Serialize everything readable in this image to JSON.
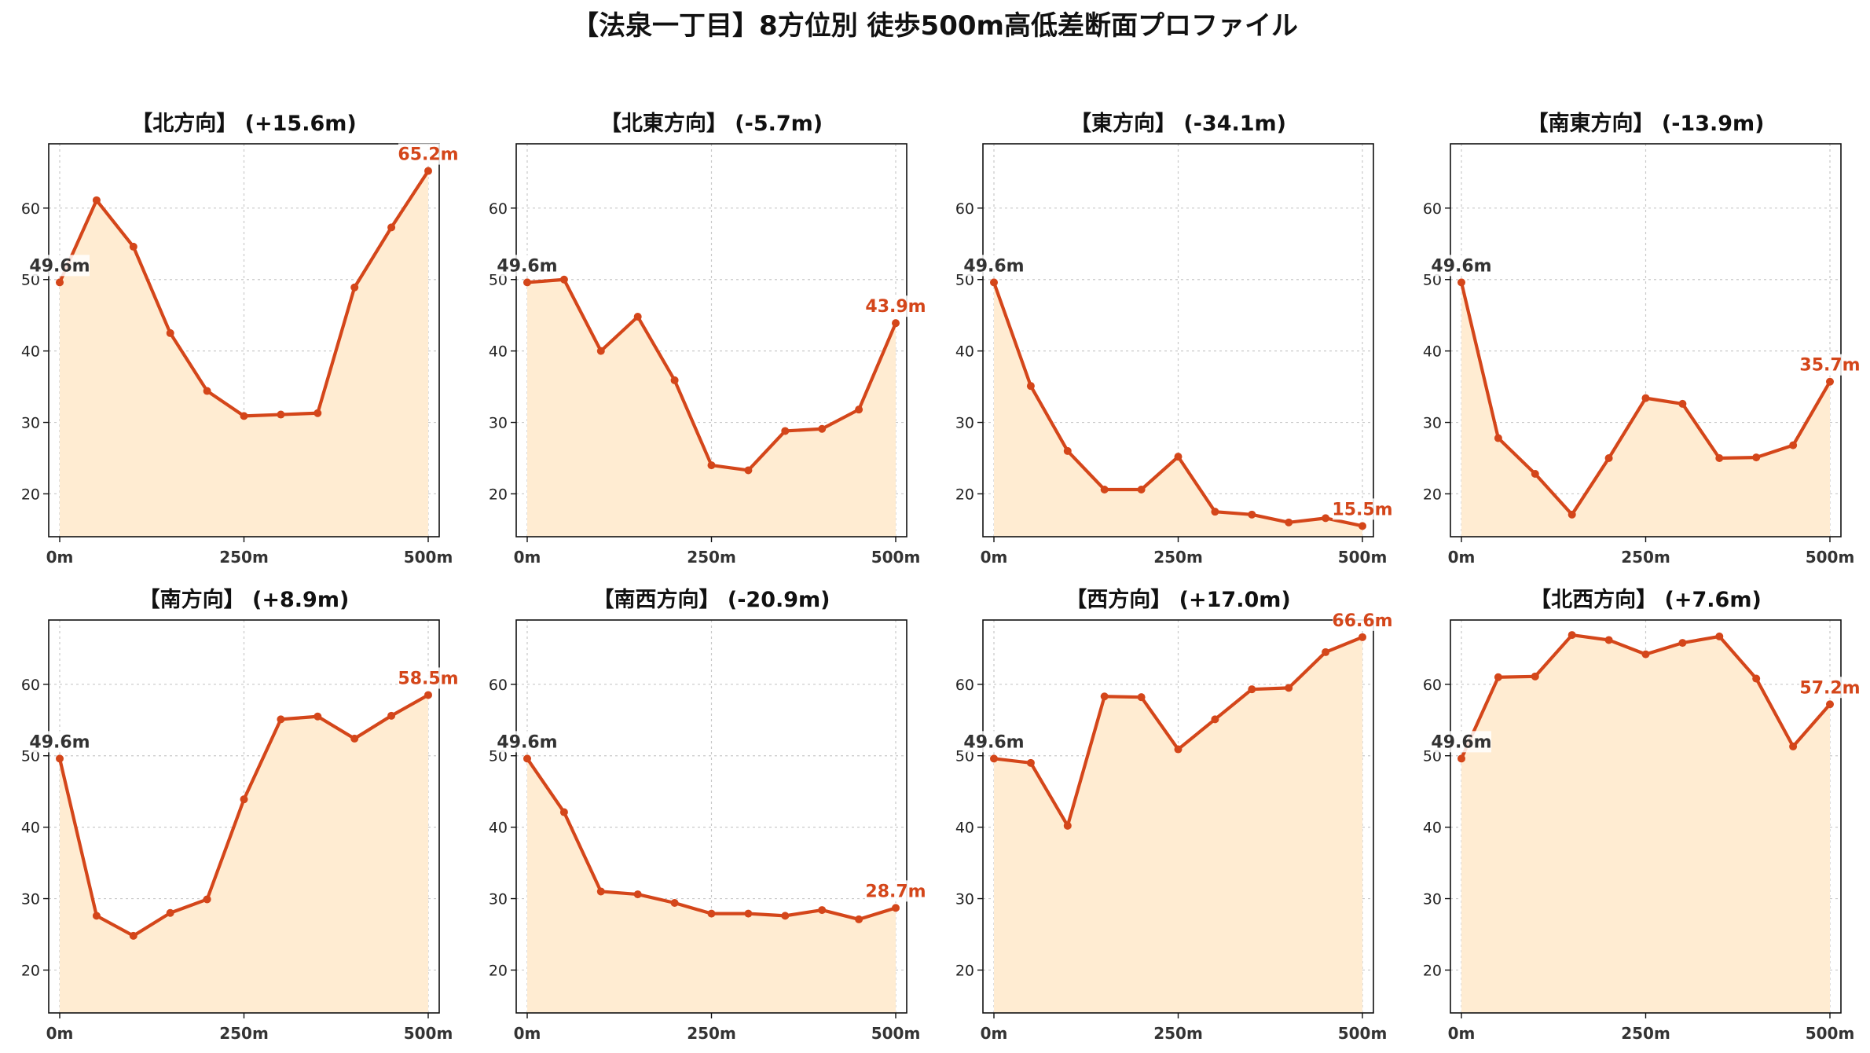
{
  "suptitle": "【法泉一丁目】8方位別 徒歩500m高低差断面プロファイル",
  "colors": {
    "line": "#d4461a",
    "fill": "#ffecd2",
    "start_label": "#333333",
    "end_label": "#d4461a"
  },
  "chart_data": [
    {
      "type": "area",
      "title": "【北方向】 (+15.6m)",
      "x": [
        0,
        50,
        100,
        150,
        200,
        250,
        300,
        350,
        400,
        450,
        500
      ],
      "y": [
        49.6,
        61.1,
        54.6,
        42.5,
        34.4,
        30.9,
        31.1,
        31.3,
        48.9,
        57.3,
        65.2
      ],
      "start_label": "49.6m",
      "end_label": "65.2m",
      "xticks": [
        "0m",
        "250m",
        "500m"
      ],
      "yticks": [
        20,
        30,
        40,
        50,
        60
      ],
      "ylim": [
        14,
        69
      ],
      "grid": true
    },
    {
      "type": "area",
      "title": "【北東方向】 (-5.7m)",
      "x": [
        0,
        50,
        100,
        150,
        200,
        250,
        300,
        350,
        400,
        450,
        500
      ],
      "y": [
        49.6,
        50.0,
        40.0,
        44.8,
        35.9,
        24.0,
        23.3,
        28.8,
        29.1,
        31.8,
        43.9
      ],
      "start_label": "49.6m",
      "end_label": "43.9m",
      "xticks": [
        "0m",
        "250m",
        "500m"
      ],
      "yticks": [
        20,
        30,
        40,
        50,
        60
      ],
      "ylim": [
        14,
        69
      ],
      "grid": true
    },
    {
      "type": "area",
      "title": "【東方向】 (-34.1m)",
      "x": [
        0,
        50,
        100,
        150,
        200,
        250,
        300,
        350,
        400,
        450,
        500
      ],
      "y": [
        49.6,
        35.1,
        26.0,
        20.6,
        20.6,
        25.2,
        17.5,
        17.1,
        16.0,
        16.6,
        15.5
      ],
      "start_label": "49.6m",
      "end_label": "15.5m",
      "xticks": [
        "0m",
        "250m",
        "500m"
      ],
      "yticks": [
        20,
        30,
        40,
        50,
        60
      ],
      "ylim": [
        14,
        69
      ],
      "grid": true
    },
    {
      "type": "area",
      "title": "【南東方向】 (-13.9m)",
      "x": [
        0,
        50,
        100,
        150,
        200,
        250,
        300,
        350,
        400,
        450,
        500
      ],
      "y": [
        49.6,
        27.8,
        22.8,
        17.1,
        25.0,
        33.4,
        32.6,
        25.0,
        25.1,
        26.8,
        35.7
      ],
      "start_label": "49.6m",
      "end_label": "35.7m",
      "xticks": [
        "0m",
        "250m",
        "500m"
      ],
      "yticks": [
        20,
        30,
        40,
        50,
        60
      ],
      "ylim": [
        14,
        69
      ],
      "grid": true
    },
    {
      "type": "area",
      "title": "【南方向】 (+8.9m)",
      "x": [
        0,
        50,
        100,
        150,
        200,
        250,
        300,
        350,
        400,
        450,
        500
      ],
      "y": [
        49.6,
        27.6,
        24.8,
        28.0,
        29.9,
        43.9,
        55.1,
        55.5,
        52.4,
        55.6,
        58.5
      ],
      "start_label": "49.6m",
      "end_label": "58.5m",
      "xticks": [
        "0m",
        "250m",
        "500m"
      ],
      "yticks": [
        20,
        30,
        40,
        50,
        60
      ],
      "ylim": [
        14,
        69
      ],
      "grid": true
    },
    {
      "type": "area",
      "title": "【南西方向】 (-20.9m)",
      "x": [
        0,
        50,
        100,
        150,
        200,
        250,
        300,
        350,
        400,
        450,
        500
      ],
      "y": [
        49.6,
        42.1,
        31.0,
        30.6,
        29.4,
        27.9,
        27.9,
        27.6,
        28.4,
        27.1,
        28.7
      ],
      "start_label": "49.6m",
      "end_label": "28.7m",
      "xticks": [
        "0m",
        "250m",
        "500m"
      ],
      "yticks": [
        20,
        30,
        40,
        50,
        60
      ],
      "ylim": [
        14,
        69
      ],
      "grid": true
    },
    {
      "type": "area",
      "title": "【西方向】 (+17.0m)",
      "x": [
        0,
        50,
        100,
        150,
        200,
        250,
        300,
        350,
        400,
        450,
        500
      ],
      "y": [
        49.6,
        49.0,
        40.2,
        58.3,
        58.2,
        50.9,
        55.1,
        59.3,
        59.5,
        64.5,
        66.6
      ],
      "start_label": "49.6m",
      "end_label": "66.6m",
      "xticks": [
        "0m",
        "250m",
        "500m"
      ],
      "yticks": [
        20,
        30,
        40,
        50,
        60
      ],
      "ylim": [
        14,
        69
      ],
      "grid": true
    },
    {
      "type": "area",
      "title": "【北西方向】 (+7.6m)",
      "x": [
        0,
        50,
        100,
        150,
        200,
        250,
        300,
        350,
        400,
        450,
        500
      ],
      "y": [
        49.6,
        61.0,
        61.1,
        66.9,
        66.2,
        64.2,
        65.8,
        66.7,
        60.8,
        51.3,
        57.2
      ],
      "start_label": "49.6m",
      "end_label": "57.2m",
      "xticks": [
        "0m",
        "250m",
        "500m"
      ],
      "yticks": [
        20,
        30,
        40,
        50,
        60
      ],
      "ylim": [
        14,
        69
      ],
      "grid": true
    }
  ]
}
